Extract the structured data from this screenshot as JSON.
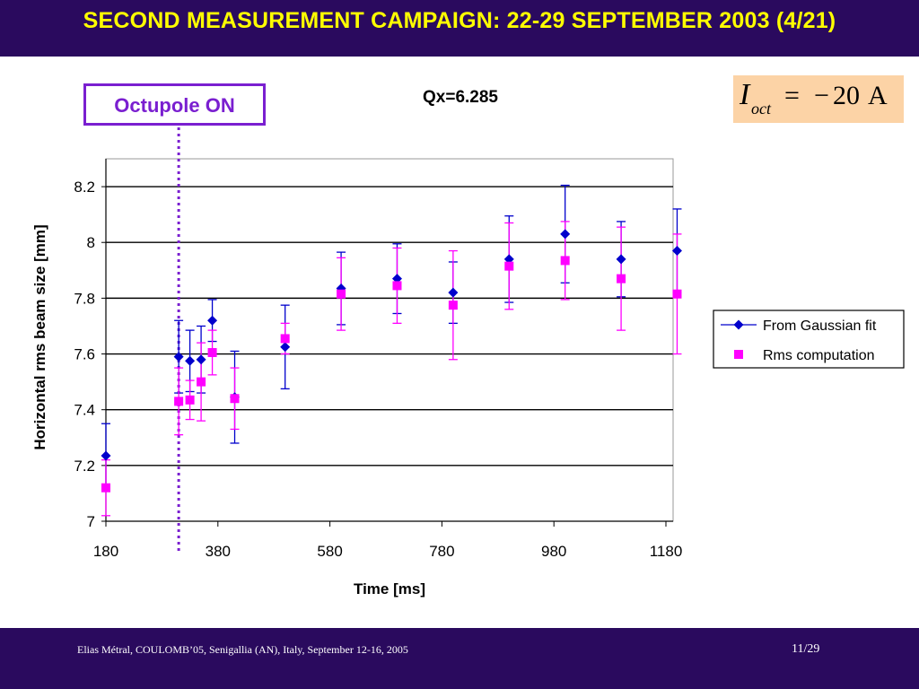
{
  "slide": {
    "title": "SECOND MEASUREMENT CAMPAIGN: 22-29 SEPTEMBER 2003 (4/21)",
    "footer_left": "Elias Métral, COULOMB’05, Senigallia (AN), Italy, September 12-16, 2005",
    "footer_right": "11/29",
    "octupole_label": "Octupole ON",
    "formula": {
      "symbol": "I",
      "subscript": "oct",
      "equals": "=",
      "minus": "−",
      "value": "20",
      "unit": "A"
    }
  },
  "colors": {
    "bar_background": "#2a0a5e",
    "title_text": "#ffff00",
    "octupole": "#7a1fd0",
    "formula_background": "#fcd3a6",
    "gaussian_series": "#0000cc",
    "rms_series": "#ff00ff"
  },
  "chart_data": {
    "type": "scatter",
    "title": "Qx=6.285",
    "xlabel": "Time [ms]",
    "ylabel": "Horizontal rms beam size [mm]",
    "xlim": [
      180,
      1200
    ],
    "ylim": [
      7,
      8.3
    ],
    "xticks": [
      180,
      380,
      580,
      780,
      980,
      1180
    ],
    "yticks": [
      7,
      7.2,
      7.4,
      7.6,
      7.8,
      8,
      8.2
    ],
    "xtick_labels": [
      "180",
      "380",
      "580",
      "780",
      "980",
      "1180"
    ],
    "ytick_labels": [
      "7",
      "7.2",
      "7.4",
      "7.6",
      "7.8",
      "8",
      "8.2"
    ],
    "grid": "horizontal",
    "legend_position": "right",
    "octupole_on_time": 310,
    "series": [
      {
        "name": "From Gaussian fit",
        "marker": "diamond",
        "color": "#0000cc",
        "points": [
          {
            "x": 180,
            "y": 7.235,
            "err": 0.115
          },
          {
            "x": 310,
            "y": 7.59,
            "err": 0.13
          },
          {
            "x": 330,
            "y": 7.575,
            "err": 0.11
          },
          {
            "x": 350,
            "y": 7.58,
            "err": 0.12
          },
          {
            "x": 370,
            "y": 7.72,
            "err": 0.075
          },
          {
            "x": 410,
            "y": 7.445,
            "err": 0.165
          },
          {
            "x": 500,
            "y": 7.625,
            "err": 0.15
          },
          {
            "x": 600,
            "y": 7.835,
            "err": 0.13
          },
          {
            "x": 700,
            "y": 7.87,
            "err": 0.125
          },
          {
            "x": 800,
            "y": 7.82,
            "err": 0.11
          },
          {
            "x": 900,
            "y": 7.94,
            "err": 0.155
          },
          {
            "x": 1000,
            "y": 8.03,
            "err": 0.175
          },
          {
            "x": 1100,
            "y": 7.94,
            "err": 0.135
          },
          {
            "x": 1200,
            "y": 7.97,
            "err": 0.15
          }
        ]
      },
      {
        "name": "Rms computation",
        "marker": "square",
        "color": "#ff00ff",
        "points": [
          {
            "x": 180,
            "y": 7.12,
            "err": 0.1
          },
          {
            "x": 310,
            "y": 7.43,
            "err": 0.12
          },
          {
            "x": 330,
            "y": 7.435,
            "err": 0.07
          },
          {
            "x": 350,
            "y": 7.5,
            "err": 0.14
          },
          {
            "x": 370,
            "y": 7.605,
            "err": 0.08
          },
          {
            "x": 410,
            "y": 7.44,
            "err": 0.11
          },
          {
            "x": 500,
            "y": 7.655,
            "err": 0.055
          },
          {
            "x": 600,
            "y": 7.815,
            "err": 0.13
          },
          {
            "x": 700,
            "y": 7.845,
            "err": 0.135
          },
          {
            "x": 800,
            "y": 7.775,
            "err": 0.195
          },
          {
            "x": 900,
            "y": 7.915,
            "err": 0.155
          },
          {
            "x": 1000,
            "y": 7.935,
            "err": 0.14
          },
          {
            "x": 1100,
            "y": 7.87,
            "err": 0.185
          },
          {
            "x": 1200,
            "y": 7.815,
            "err": 0.215
          }
        ]
      }
    ]
  }
}
